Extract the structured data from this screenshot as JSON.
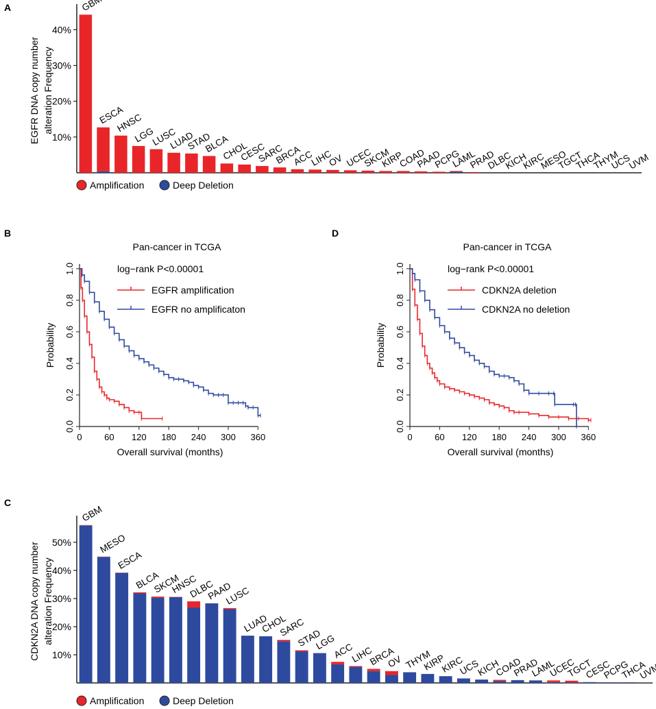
{
  "colors": {
    "amplification": "#e8262a",
    "deletion": "#2e4a9e",
    "axis": "#222222"
  },
  "legend": {
    "amplification": "Amplification",
    "deletion": "Deep Deletion"
  },
  "chart_data": [
    {
      "id": "A",
      "panel": "A",
      "type": "bar",
      "stacked": true,
      "ylabel_lines": [
        "EGFR DNA copy number",
        "alteration Frequency"
      ],
      "ylim": [
        0,
        46
      ],
      "yticks": [
        10,
        20,
        30,
        40
      ],
      "ytick_labels": [
        "10%",
        "20%",
        "30%",
        "40%"
      ],
      "categories": [
        "GBM",
        "ESCA",
        "HNSC",
        "LGG",
        "LUSC",
        "LUAD",
        "STAD",
        "BLCA",
        "CHOL",
        "CESC",
        "SARC",
        "BRCA",
        "ACC",
        "LIHC",
        "OV",
        "UCEC",
        "SKCM",
        "KIRP",
        "COAD",
        "PAAD",
        "PCPG",
        "LAML",
        "PRAD",
        "DLBC",
        "KICH",
        "KIRC",
        "MESO",
        "TGCT",
        "THCA",
        "THYM",
        "UCS",
        "UVM"
      ],
      "series": [
        {
          "name": "Deep Deletion",
          "values": [
            0,
            0.4,
            0,
            0,
            0,
            0,
            0,
            0,
            0,
            0,
            0,
            0,
            0,
            0,
            0,
            0,
            0,
            0,
            0,
            0,
            0,
            0.3,
            0,
            0,
            0,
            0,
            0,
            0,
            0,
            0,
            0,
            0
          ]
        },
        {
          "name": "Amplification",
          "values": [
            44.2,
            12.3,
            10.4,
            7.5,
            6.6,
            5.6,
            5.4,
            4.7,
            2.6,
            2.3,
            1.9,
            1.5,
            1.0,
            0.9,
            0.8,
            0.7,
            0.6,
            0.5,
            0.5,
            0.4,
            0.3,
            0.2,
            0.2,
            0,
            0,
            0,
            0,
            0,
            0,
            0,
            0,
            0
          ]
        }
      ]
    },
    {
      "id": "C",
      "panel": "C",
      "type": "bar",
      "stacked": true,
      "ylabel_lines": [
        "CDKN2A DNA copy number",
        "alteration Frequency"
      ],
      "ylim": [
        0,
        58
      ],
      "yticks": [
        10,
        20,
        30,
        40,
        50
      ],
      "ytick_labels": [
        "10%",
        "20%",
        "30%",
        "40%",
        "50%"
      ],
      "categories": [
        "GBM",
        "MESO",
        "ESCA",
        "BLCA",
        "SKCM",
        "HNSC",
        "DLBC",
        "PAAD",
        "LUSC",
        "LUAD",
        "CHOL",
        "SARC",
        "STAD",
        "LGG",
        "ACC",
        "LIHC",
        "BRCA",
        "OV",
        "THYM",
        "KIRP",
        "KIRC",
        "UCS",
        "KICH",
        "COAD",
        "PRAD",
        "LAML",
        "UCEC",
        "TGCT",
        "CESC",
        "PCPG",
        "THCA",
        "UVM"
      ],
      "series": [
        {
          "name": "Deep Deletion",
          "values": [
            56.0,
            44.8,
            39.1,
            31.8,
            30.3,
            30.5,
            26.8,
            28.3,
            26.2,
            16.8,
            16.6,
            14.8,
            11.2,
            10.6,
            6.6,
            5.7,
            4.2,
            2.8,
            3.8,
            3.2,
            2.4,
            1.6,
            1.2,
            0.7,
            1.0,
            0.9,
            0.3,
            0.2,
            0.3,
            0.2,
            0.2,
            0.1
          ]
        },
        {
          "name": "Amplification",
          "values": [
            0.1,
            0.1,
            0.1,
            0.4,
            0.4,
            0.1,
            2.2,
            0,
            0.4,
            0,
            0,
            0.5,
            0.4,
            0,
            0.9,
            0.3,
            0.8,
            1.4,
            0,
            0,
            0,
            0,
            0,
            0.4,
            0,
            0,
            0.6,
            0.6,
            0,
            0,
            0,
            0
          ]
        }
      ]
    },
    {
      "id": "B",
      "panel": "B",
      "type": "line",
      "kind": "kaplan-meier",
      "title": "Pan-cancer in TCGA",
      "pvalue": "log−rank P<0.00001",
      "xlabel": "Overall survival (months)",
      "ylabel": "Probability",
      "xlim": [
        0,
        365
      ],
      "ylim": [
        0,
        1.03
      ],
      "xticks": [
        0,
        60,
        120,
        180,
        240,
        300,
        360
      ],
      "yticks": [
        0.0,
        0.2,
        0.4,
        0.6,
        0.8,
        1.0
      ],
      "ytick_labels": [
        "0.0",
        "0.2",
        "0.4",
        "0.6",
        "0.8",
        "1.0"
      ],
      "series": [
        {
          "name": "EGFR amplification",
          "color": "#e8262a",
          "x": [
            0,
            3,
            6,
            10,
            15,
            20,
            25,
            30,
            35,
            40,
            45,
            50,
            55,
            60,
            70,
            80,
            90,
            100,
            110,
            120,
            125,
            167
          ],
          "y": [
            1.0,
            0.88,
            0.8,
            0.7,
            0.6,
            0.52,
            0.44,
            0.35,
            0.3,
            0.25,
            0.22,
            0.2,
            0.18,
            0.17,
            0.16,
            0.14,
            0.12,
            0.1,
            0.09,
            0.09,
            0.05,
            0.05
          ]
        },
        {
          "name": "EGFR no amplificaton",
          "color": "#2e4a9e",
          "x": [
            0,
            5,
            10,
            20,
            30,
            40,
            50,
            60,
            70,
            80,
            90,
            100,
            110,
            120,
            130,
            140,
            150,
            160,
            170,
            180,
            190,
            200,
            210,
            220,
            230,
            240,
            250,
            260,
            270,
            280,
            290,
            300,
            310,
            320,
            330,
            335,
            340,
            350,
            360,
            365
          ],
          "y": [
            1.0,
            0.96,
            0.92,
            0.85,
            0.79,
            0.73,
            0.68,
            0.63,
            0.59,
            0.55,
            0.51,
            0.48,
            0.45,
            0.43,
            0.41,
            0.39,
            0.37,
            0.35,
            0.33,
            0.31,
            0.3,
            0.3,
            0.29,
            0.28,
            0.26,
            0.25,
            0.23,
            0.21,
            0.2,
            0.2,
            0.2,
            0.15,
            0.15,
            0.15,
            0.15,
            0.13,
            0.12,
            0.12,
            0.07,
            0.07
          ]
        }
      ]
    },
    {
      "id": "D",
      "panel": "D",
      "type": "line",
      "kind": "kaplan-meier",
      "title": "Pan-cancer in TCGA",
      "pvalue": "log−rank P<0.00001",
      "xlabel": "Overall survival (months)",
      "ylabel": "Probability",
      "xlim": [
        0,
        365
      ],
      "ylim": [
        0,
        1.03
      ],
      "xticks": [
        0,
        60,
        120,
        180,
        240,
        300,
        360
      ],
      "yticks": [
        0.0,
        0.2,
        0.4,
        0.6,
        0.8,
        1.0
      ],
      "ytick_labels": [
        "0.0",
        "0.2",
        "0.4",
        "0.6",
        "0.8",
        "1.0"
      ],
      "series": [
        {
          "name": "CDKN2A deletion",
          "color": "#e8262a",
          "x": [
            0,
            5,
            10,
            15,
            20,
            25,
            30,
            35,
            40,
            45,
            50,
            55,
            60,
            70,
            80,
            90,
            100,
            110,
            120,
            130,
            140,
            150,
            160,
            170,
            180,
            190,
            200,
            210,
            220,
            240,
            260,
            280,
            300,
            320,
            340,
            360,
            365
          ],
          "y": [
            1.0,
            0.87,
            0.77,
            0.68,
            0.59,
            0.51,
            0.45,
            0.4,
            0.37,
            0.34,
            0.31,
            0.29,
            0.27,
            0.25,
            0.24,
            0.23,
            0.22,
            0.21,
            0.2,
            0.19,
            0.18,
            0.17,
            0.15,
            0.14,
            0.13,
            0.12,
            0.1,
            0.09,
            0.09,
            0.08,
            0.07,
            0.06,
            0.06,
            0.05,
            0.05,
            0.04,
            0.04
          ]
        },
        {
          "name": "CDKN2A no deletion",
          "color": "#2e4a9e",
          "x": [
            0,
            5,
            10,
            20,
            30,
            40,
            50,
            60,
            70,
            80,
            90,
            100,
            110,
            120,
            130,
            140,
            150,
            160,
            170,
            180,
            190,
            200,
            210,
            220,
            230,
            240,
            260,
            280,
            290,
            292,
            330,
            334,
            336
          ],
          "y": [
            1.0,
            0.97,
            0.93,
            0.86,
            0.8,
            0.74,
            0.69,
            0.64,
            0.6,
            0.56,
            0.53,
            0.5,
            0.47,
            0.45,
            0.42,
            0.4,
            0.38,
            0.35,
            0.33,
            0.32,
            0.32,
            0.31,
            0.29,
            0.27,
            0.23,
            0.21,
            0.21,
            0.21,
            0.21,
            0.14,
            0.14,
            0.14,
            0.0
          ]
        }
      ]
    }
  ]
}
